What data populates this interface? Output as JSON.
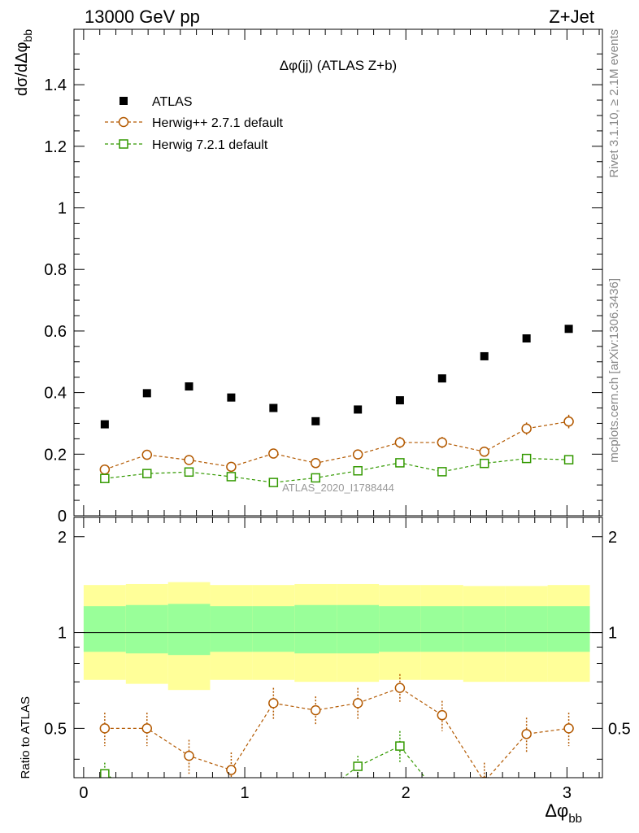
{
  "header": {
    "left": "13000 GeV pp",
    "right": "Z+Jet"
  },
  "side_text": {
    "rivet": "Rivet 3.1.10, ≥ 2.1M events",
    "mcplots": "mcplots.cern.ch [arXiv:1306.3436]"
  },
  "watermark": "ATLAS_2020_I1788444",
  "colors": {
    "atlas": "#000000",
    "herwigpp": "#b35900",
    "herwig7": "#339900",
    "band_outer": "#ffff99",
    "band_inner": "#99ff99"
  },
  "chart_data": [
    {
      "type": "scatter",
      "title": "Δφ(jj) (ATLAS Z+b)",
      "ylabel": "dσ/dΔφ_bb",
      "xlim": [
        -0.06,
        3.22
      ],
      "ylim": [
        0,
        1.58
      ],
      "yticks": [
        0,
        0.2,
        0.4,
        0.6,
        0.8,
        1,
        1.2,
        1.4
      ],
      "ytick_labels": [
        "0",
        "0.2",
        "0.4",
        "0.6",
        "0.8",
        "1",
        "1.2",
        "1.4"
      ],
      "legend": [
        "ATLAS",
        "Herwig++ 2.7.1 default",
        "Herwig 7.2.1 default"
      ],
      "legend_position": "top-left",
      "x": [
        0.131,
        0.393,
        0.654,
        0.916,
        1.178,
        1.44,
        1.702,
        1.963,
        2.225,
        2.487,
        2.749,
        3.011
      ],
      "series": [
        {
          "name": "ATLAS",
          "marker": "square-filled",
          "values": [
            0.297,
            0.398,
            0.42,
            0.384,
            0.35,
            0.307,
            0.345,
            0.375,
            0.446,
            0.518,
            0.576,
            0.607
          ]
        },
        {
          "name": "Herwig++ 2.7.1 default",
          "marker": "circle-open",
          "values": [
            0.15,
            0.198,
            0.181,
            0.159,
            0.202,
            0.171,
            0.199,
            0.238,
            0.238,
            0.208,
            0.283,
            0.306
          ],
          "errors": [
            0.012,
            0.016,
            0.015,
            0.013,
            0.016,
            0.014,
            0.016,
            0.018,
            0.018,
            0.016,
            0.02,
            0.022
          ]
        },
        {
          "name": "Herwig 7.2.1 default",
          "marker": "square-open",
          "values": [
            0.121,
            0.137,
            0.142,
            0.127,
            0.108,
            0.123,
            0.146,
            0.172,
            0.143,
            0.17,
            0.186,
            0.182
          ],
          "errors": [
            0.01,
            0.011,
            0.011,
            0.01,
            0.009,
            0.01,
            0.011,
            0.013,
            0.011,
            0.013,
            0.014,
            0.014
          ]
        }
      ]
    },
    {
      "type": "line",
      "ylabel": "Ratio to ATLAS",
      "xlabel": "Δφ_bb",
      "xlim": [
        -0.06,
        3.22
      ],
      "ylim": [
        0.35,
        2.3
      ],
      "xticks": [
        0,
        1,
        2,
        3
      ],
      "xtick_labels": [
        "0",
        "1",
        "2",
        "3"
      ],
      "yticks": [
        0.5,
        1,
        2
      ],
      "ytick_labels": [
        "0.5",
        "1",
        "2"
      ],
      "bin_edges": [
        0.0,
        0.262,
        0.524,
        0.785,
        1.047,
        1.309,
        1.571,
        1.833,
        2.094,
        2.356,
        2.618,
        2.88,
        3.142
      ],
      "band_inner": {
        "low": [
          0.87,
          0.86,
          0.85,
          0.87,
          0.87,
          0.86,
          0.86,
          0.87,
          0.87,
          0.87,
          0.87,
          0.87
        ],
        "high": [
          1.21,
          1.22,
          1.23,
          1.21,
          1.21,
          1.22,
          1.22,
          1.21,
          1.21,
          1.21,
          1.21,
          1.21
        ]
      },
      "band_outer": {
        "low": [
          0.71,
          0.69,
          0.66,
          0.71,
          0.71,
          0.7,
          0.7,
          0.71,
          0.71,
          0.7,
          0.7,
          0.7
        ],
        "high": [
          1.41,
          1.42,
          1.44,
          1.41,
          1.41,
          1.42,
          1.42,
          1.41,
          1.41,
          1.4,
          1.4,
          1.41
        ]
      },
      "series": [
        {
          "name": "Herwig++ 2.7.1 default",
          "values": [
            0.5,
            0.5,
            0.41,
            0.37,
            0.6,
            0.57,
            0.6,
            0.67,
            0.55,
            0.34,
            0.48,
            0.5
          ],
          "errors": [
            0.06,
            0.06,
            0.05,
            0.05,
            0.07,
            0.06,
            0.07,
            0.07,
            0.06,
            0.05,
            0.06,
            0.06
          ]
        },
        {
          "name": "Herwig 7.2.1 default",
          "values": [
            0.36,
            0.3,
            0.3,
            0.3,
            0.3,
            0.3,
            0.38,
            0.44,
            0.3,
            0.3,
            0.3,
            0.3
          ],
          "errors": [
            0.03,
            0.03,
            0.03,
            0.03,
            0.03,
            0.03,
            0.03,
            0.05,
            0.03,
            0.03,
            0.03,
            0.03
          ]
        }
      ],
      "reference_line": 1
    }
  ]
}
